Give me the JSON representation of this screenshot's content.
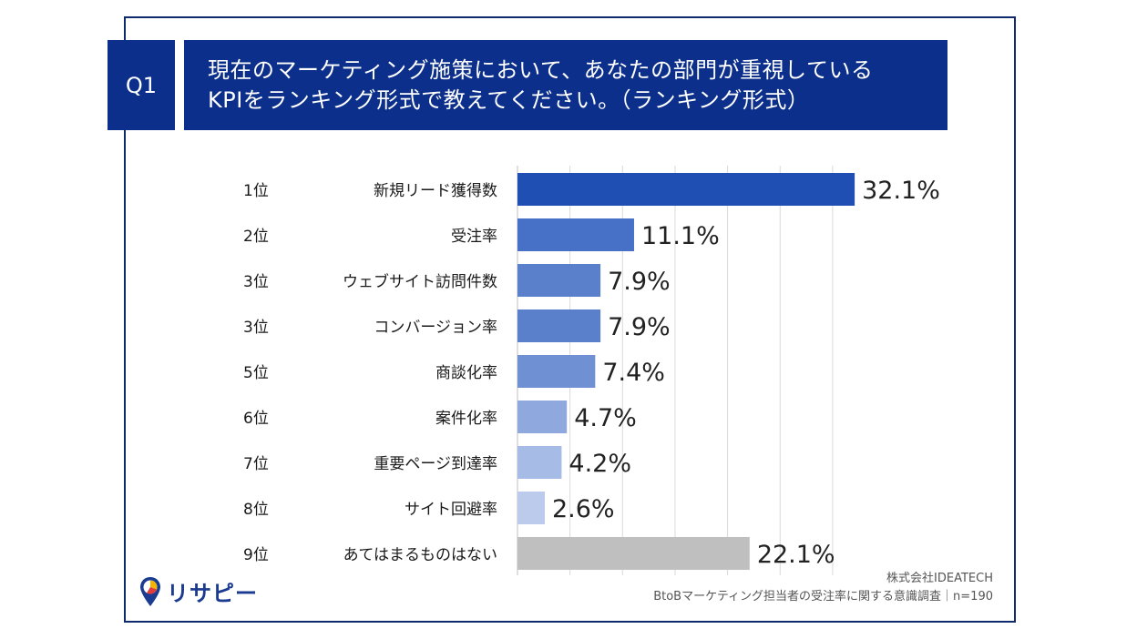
{
  "question": {
    "label": "Q1",
    "title_lines": [
      "現在のマーケティング施策において、あなたの部門が重視している",
      "KPIをランキング形式で教えてください。（ランキング形式）"
    ]
  },
  "chart_data": {
    "type": "bar",
    "orientation": "horizontal",
    "ranks": [
      "1位",
      "2位",
      "3位",
      "3位",
      "5位",
      "6位",
      "7位",
      "8位",
      "9位"
    ],
    "categories": [
      "新規リード獲得数",
      "受注率",
      "ウェブサイト訪問件数",
      "コンバージョン率",
      "商談化率",
      "案件化率",
      "重要ページ到達率",
      "サイト回避率",
      "あてはまるものはない"
    ],
    "values": [
      32.1,
      11.1,
      7.9,
      7.9,
      7.4,
      4.7,
      4.2,
      2.6,
      22.1
    ],
    "value_labels": [
      "32.1%",
      "11.1%",
      "7.9%",
      "7.9%",
      "7.4%",
      "4.7%",
      "4.2%",
      "2.6%",
      "22.1%"
    ],
    "colors": [
      "#1f4fb3",
      "#4671c6",
      "#5a80cc",
      "#5a80cc",
      "#6f90d3",
      "#8fa9de",
      "#a6bbe5",
      "#bccbeb",
      "#bfbfbf"
    ],
    "xlim": [
      0,
      35
    ],
    "grid": true,
    "xlabel": "",
    "ylabel": ""
  },
  "footer": {
    "company": "株式会社IDEATECH",
    "survey": "BtoBマーケティング担当者の受注率に関する意識調査｜n=190"
  },
  "logo": {
    "text": "リサピー",
    "icon": "pin-icon"
  }
}
